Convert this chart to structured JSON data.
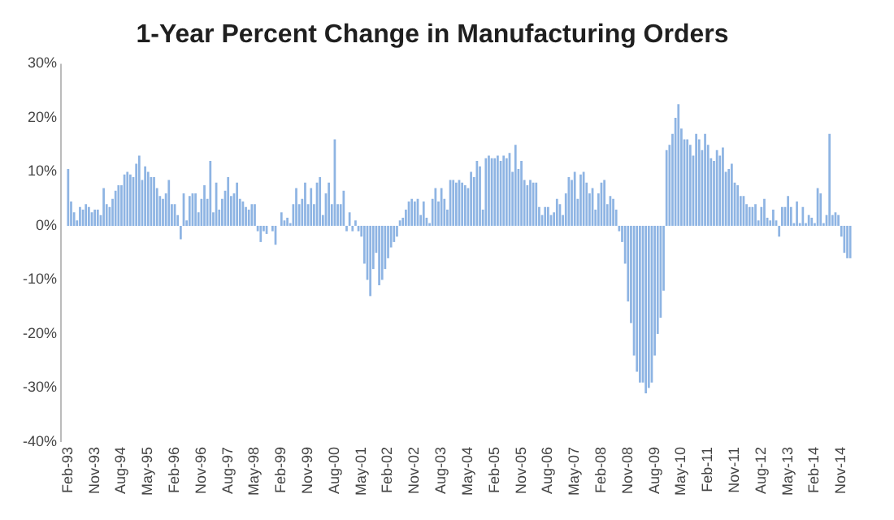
{
  "chart_data": {
    "type": "bar",
    "title": "1-Year Percent Change in Manufacturing Orders",
    "categories": [
      "Feb-93",
      null,
      null,
      null,
      null,
      null,
      null,
      null,
      null,
      "Nov-93",
      null,
      null,
      null,
      null,
      null,
      null,
      null,
      null,
      "Aug-94",
      null,
      null,
      null,
      null,
      null,
      null,
      null,
      null,
      "May-95",
      null,
      null,
      null,
      null,
      null,
      null,
      null,
      null,
      "Feb-96",
      null,
      null,
      null,
      null,
      null,
      null,
      null,
      null,
      "Nov-96",
      null,
      null,
      null,
      null,
      null,
      null,
      null,
      null,
      "Aug-97",
      null,
      null,
      null,
      null,
      null,
      null,
      null,
      null,
      "May-98",
      null,
      null,
      null,
      null,
      null,
      null,
      null,
      null,
      "Feb-99",
      null,
      null,
      null,
      null,
      null,
      null,
      null,
      null,
      "Nov-99",
      null,
      null,
      null,
      null,
      null,
      null,
      null,
      null,
      "Aug-00",
      null,
      null,
      null,
      null,
      null,
      null,
      null,
      null,
      "May-01",
      null,
      null,
      null,
      null,
      null,
      null,
      null,
      null,
      "Feb-02",
      null,
      null,
      null,
      null,
      null,
      null,
      null,
      null,
      "Nov-02",
      null,
      null,
      null,
      null,
      null,
      null,
      null,
      null,
      "Aug-03",
      null,
      null,
      null,
      null,
      null,
      null,
      null,
      null,
      "May-04",
      null,
      null,
      null,
      null,
      null,
      null,
      null,
      null,
      "Feb-05",
      null,
      null,
      null,
      null,
      null,
      null,
      null,
      null,
      "Nov-05",
      null,
      null,
      null,
      null,
      null,
      null,
      null,
      null,
      "Aug-06",
      null,
      null,
      null,
      null,
      null,
      null,
      null,
      null,
      "May-07",
      null,
      null,
      null,
      null,
      null,
      null,
      null,
      null,
      "Feb-08",
      null,
      null,
      null,
      null,
      null,
      null,
      null,
      null,
      "Nov-08",
      null,
      null,
      null,
      null,
      null,
      null,
      null,
      null,
      "Aug-09",
      null,
      null,
      null,
      null,
      null,
      null,
      null,
      null,
      "May-10",
      null,
      null,
      null,
      null,
      null,
      null,
      null,
      null,
      "Feb-11",
      null,
      null,
      null,
      null,
      null,
      null,
      null,
      null,
      "Nov-11",
      null,
      null,
      null,
      null,
      null,
      null,
      null,
      null,
      "Aug-12",
      null,
      null,
      null,
      null,
      null,
      null,
      null,
      null,
      "May-13",
      null,
      null,
      null,
      null,
      null,
      null,
      null,
      null,
      "Feb-14",
      null,
      null,
      null,
      null,
      null,
      null,
      null,
      null,
      "Nov-14",
      null,
      null,
      null
    ],
    "values": [
      10.5,
      4.5,
      2.5,
      1,
      3.5,
      3,
      4,
      3.5,
      2.5,
      3,
      3,
      2,
      7,
      4,
      3.5,
      5,
      6.5,
      7.5,
      7.5,
      9.5,
      10,
      9.5,
      9,
      11.5,
      13,
      8.5,
      11,
      10,
      9,
      9,
      7,
      5.5,
      5,
      6,
      8.5,
      4,
      4,
      2,
      -2.5,
      6,
      1,
      5.5,
      6,
      6,
      2.5,
      5,
      7.5,
      5,
      12,
      2.5,
      8,
      3,
      5,
      6.5,
      9,
      5.5,
      6,
      8,
      5,
      4.5,
      3.5,
      3,
      4,
      4,
      -1,
      -3,
      -1,
      -1.5,
      0,
      -1,
      -3.5,
      0,
      2.5,
      1,
      1.5,
      0.5,
      4,
      7,
      4,
      5,
      8,
      4,
      7,
      4,
      8,
      9,
      2,
      6,
      8,
      4,
      16,
      4,
      4,
      6.5,
      -1,
      2.5,
      -1,
      1,
      -1,
      -2,
      -7,
      -10,
      -13,
      -8,
      -5,
      -11,
      -10,
      -8,
      -6,
      -4,
      -3,
      -2,
      1,
      1.5,
      3,
      4.5,
      5,
      4.5,
      5,
      2,
      4.5,
      1.5,
      0.5,
      5,
      7,
      4.5,
      7,
      5,
      3,
      8.5,
      8.5,
      8,
      8.5,
      8,
      7.5,
      7,
      10,
      9,
      12,
      11,
      3,
      12.5,
      13,
      12.5,
      12.5,
      13,
      12,
      13,
      12.5,
      13.5,
      10,
      15,
      10.5,
      12,
      8.5,
      7.5,
      8.5,
      8,
      8,
      3.5,
      2,
      3.5,
      3.5,
      2,
      2.5,
      5,
      4,
      2,
      6,
      9,
      8.5,
      10,
      5,
      9.5,
      10,
      8,
      6,
      7,
      3,
      6,
      8,
      8.5,
      4,
      5.5,
      5,
      3,
      -1,
      -3,
      -7,
      -14,
      -18,
      -24,
      -27,
      -29,
      -29,
      -31,
      -30,
      -29,
      -24,
      -20,
      -17,
      -12,
      14,
      15,
      17,
      20,
      22.5,
      18,
      16,
      16,
      15,
      13,
      17,
      16,
      14,
      17,
      15,
      12.5,
      12,
      14,
      13,
      14.5,
      10,
      10.5,
      11.5,
      8,
      7.5,
      5.5,
      5.5,
      4,
      3.5,
      3.5,
      4,
      1,
      3.5,
      5,
      1.5,
      1,
      3,
      1,
      -2,
      3.5,
      3.5,
      5.5,
      3.5,
      0.5,
      4.5,
      0.5,
      3.5,
      0.5,
      2,
      1.5,
      0.5,
      7,
      6,
      0.5,
      2,
      17,
      2,
      2.5,
      2,
      -2,
      -5,
      -6,
      -6
    ],
    "color": "#8eb4e3",
    "ylim": [
      -40,
      30
    ],
    "yticks": [
      {
        "value": -40,
        "label": "-40%"
      },
      {
        "value": -30,
        "label": "-30%"
      },
      {
        "value": -20,
        "label": "-20%"
      },
      {
        "value": -10,
        "label": "-10%"
      },
      {
        "value": 0,
        "label": "0%"
      },
      {
        "value": 10,
        "label": "10%"
      },
      {
        "value": 20,
        "label": "20%"
      },
      {
        "value": 30,
        "label": "30%"
      }
    ],
    "grid": false,
    "legend": false
  }
}
